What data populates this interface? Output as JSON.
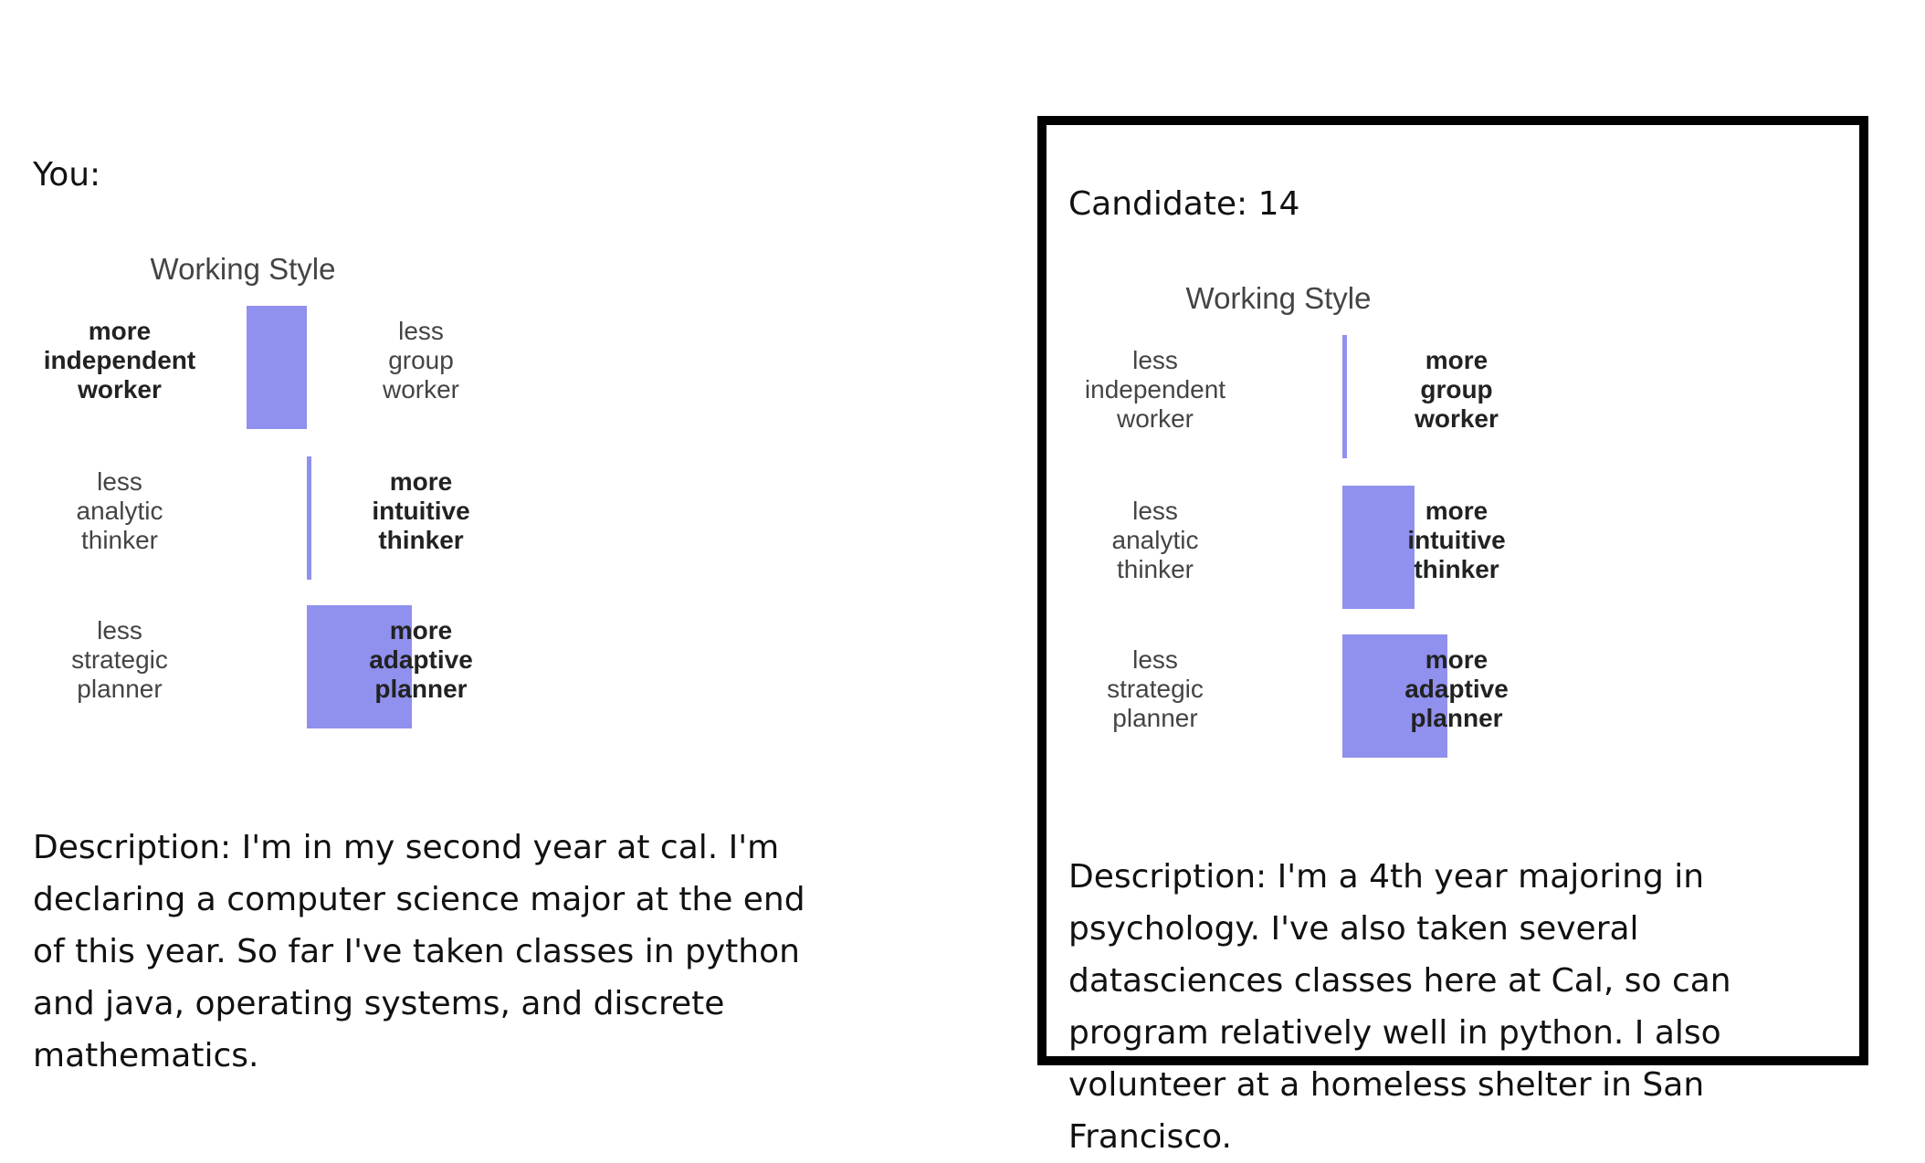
{
  "you": {
    "heading": "You:",
    "chart": {
      "title": "Working Style",
      "rows": [
        {
          "left_label": "more\nindependent\nworker",
          "left_bold": true,
          "right_label": "less\ngroup\nworker",
          "right_bold": false,
          "value": -0.85
        },
        {
          "left_label": "less\nanalytic\nthinker",
          "left_bold": false,
          "right_label": "more\nintuitive\nthinker",
          "right_bold": true,
          "value": 0.04
        },
        {
          "left_label": "less\nstrategic\nplanner",
          "left_bold": false,
          "right_label": "more\nadaptive\nplanner",
          "right_bold": true,
          "value": 1.0
        }
      ],
      "bar_color": "#9090ee"
    },
    "description": "Description: I'm in my second year at cal. I'm declaring a computer science major at the end of this year. So far I've taken classes in python and java, operating systems, and discrete mathematics."
  },
  "candidate": {
    "heading": "Candidate: 14",
    "chart": {
      "title": "Working Style",
      "rows": [
        {
          "left_label": "less\nindependent\nworker",
          "left_bold": false,
          "right_label": "more\ngroup\nworker",
          "right_bold": true,
          "value": 0.04
        },
        {
          "left_label": "less\nanalytic\nthinker",
          "left_bold": false,
          "right_label": "more\nintuitive\nthinker",
          "right_bold": true,
          "value": 0.69
        },
        {
          "left_label": "less\nstrategic\nplanner",
          "left_bold": false,
          "right_label": "more\nadaptive\nplanner",
          "right_bold": true,
          "value": 1.0
        }
      ],
      "bar_color": "#9090ee"
    },
    "description": "Description: I'm a 4th year majoring in psychology. I've also taken several datasciences classes here at Cal, so can program relatively well in python. I also volunteer at a homeless shelter in San Francisco."
  }
}
